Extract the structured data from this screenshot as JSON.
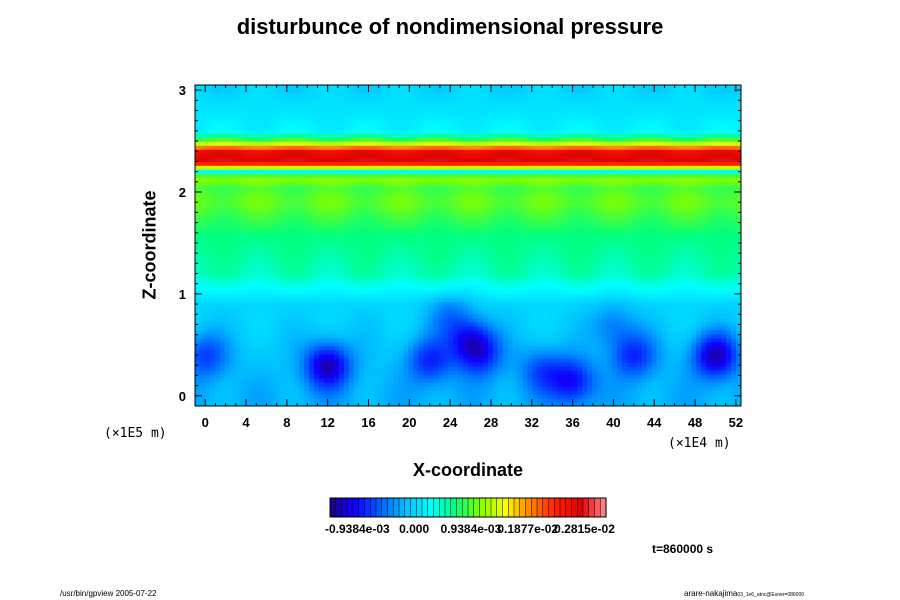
{
  "chart_data": {
    "type": "heatmap",
    "title": "disturbunce of nondimensional pressure",
    "xlabel": "X-coordinate",
    "ylabel": "Z-coordinate",
    "x_ticks": [
      "0",
      "4",
      "8",
      "12",
      "16",
      "20",
      "24",
      "28",
      "32",
      "36",
      "40",
      "44",
      "48",
      "52"
    ],
    "y_ticks": [
      "0",
      "1",
      "2",
      "3"
    ],
    "x_range": [
      -1,
      52.5
    ],
    "y_range": [
      -0.1,
      3.05
    ],
    "x_unit": "(×1E4 m)",
    "y_unit": "(×1E5 m)",
    "colorbar": {
      "labels": [
        "-0.9384e-03",
        "0.000",
        "0.9384e-03",
        "0.1877e-02",
        "0.2815e-02"
      ],
      "values": [
        -0.0009384,
        0.0,
        0.0009384,
        0.001877,
        0.002815
      ],
      "min": -0.00139,
      "max": 0.00317
    },
    "field": {
      "base_profile_z": [
        {
          "z": 0.0,
          "v": -0.0002
        },
        {
          "z": 0.9,
          "v": 0.0
        },
        {
          "z": 1.2,
          "v": 0.0005
        },
        {
          "z": 1.6,
          "v": 0.0007
        },
        {
          "z": 1.9,
          "v": 0.001
        },
        {
          "z": 2.05,
          "v": 0.0009
        },
        {
          "z": 2.15,
          "v": 0.0012
        },
        {
          "z": 2.2,
          "v": 0.0002
        },
        {
          "z": 2.3,
          "v": 0.0028
        },
        {
          "z": 2.4,
          "v": 0.0026
        },
        {
          "z": 2.5,
          "v": 0.001
        },
        {
          "z": 2.6,
          "v": 0.0002
        },
        {
          "z": 3.0,
          "v": 0.0
        }
      ],
      "low_pressure_cells": [
        {
          "x": 12,
          "z": 0.3,
          "v": -0.0011
        },
        {
          "x": 22,
          "z": 0.35,
          "v": -0.0007
        },
        {
          "x": 26,
          "z": 0.55,
          "v": -0.0008
        },
        {
          "x": 27,
          "z": 0.4,
          "v": -0.0006
        },
        {
          "x": 33,
          "z": 0.25,
          "v": -0.0005
        },
        {
          "x": 36,
          "z": 0.15,
          "v": -0.0008
        },
        {
          "x": 42,
          "z": 0.4,
          "v": -0.0007
        },
        {
          "x": 50,
          "z": 0.4,
          "v": -0.0011
        },
        {
          "x": 0,
          "z": 0.4,
          "v": -0.0006
        },
        {
          "x": 24,
          "z": 0.8,
          "v": -0.0004
        },
        {
          "x": 40,
          "z": 0.7,
          "v": -0.0004
        }
      ]
    },
    "annotations": [
      "t=860000 s"
    ]
  },
  "footer": {
    "left": "/usr/bin/gpview 2005-07-22",
    "right": "arare-nakajima",
    "right_sub": "03_1e6_atnc@Exner=086000"
  },
  "colors": {
    "scale": [
      "#200080",
      "#1000ff",
      "#0060ff",
      "#00c0ff",
      "#00ffff",
      "#00ff80",
      "#80ff00",
      "#ffff00",
      "#ff8000",
      "#ff2000",
      "#e00000",
      "#ff9090"
    ]
  }
}
